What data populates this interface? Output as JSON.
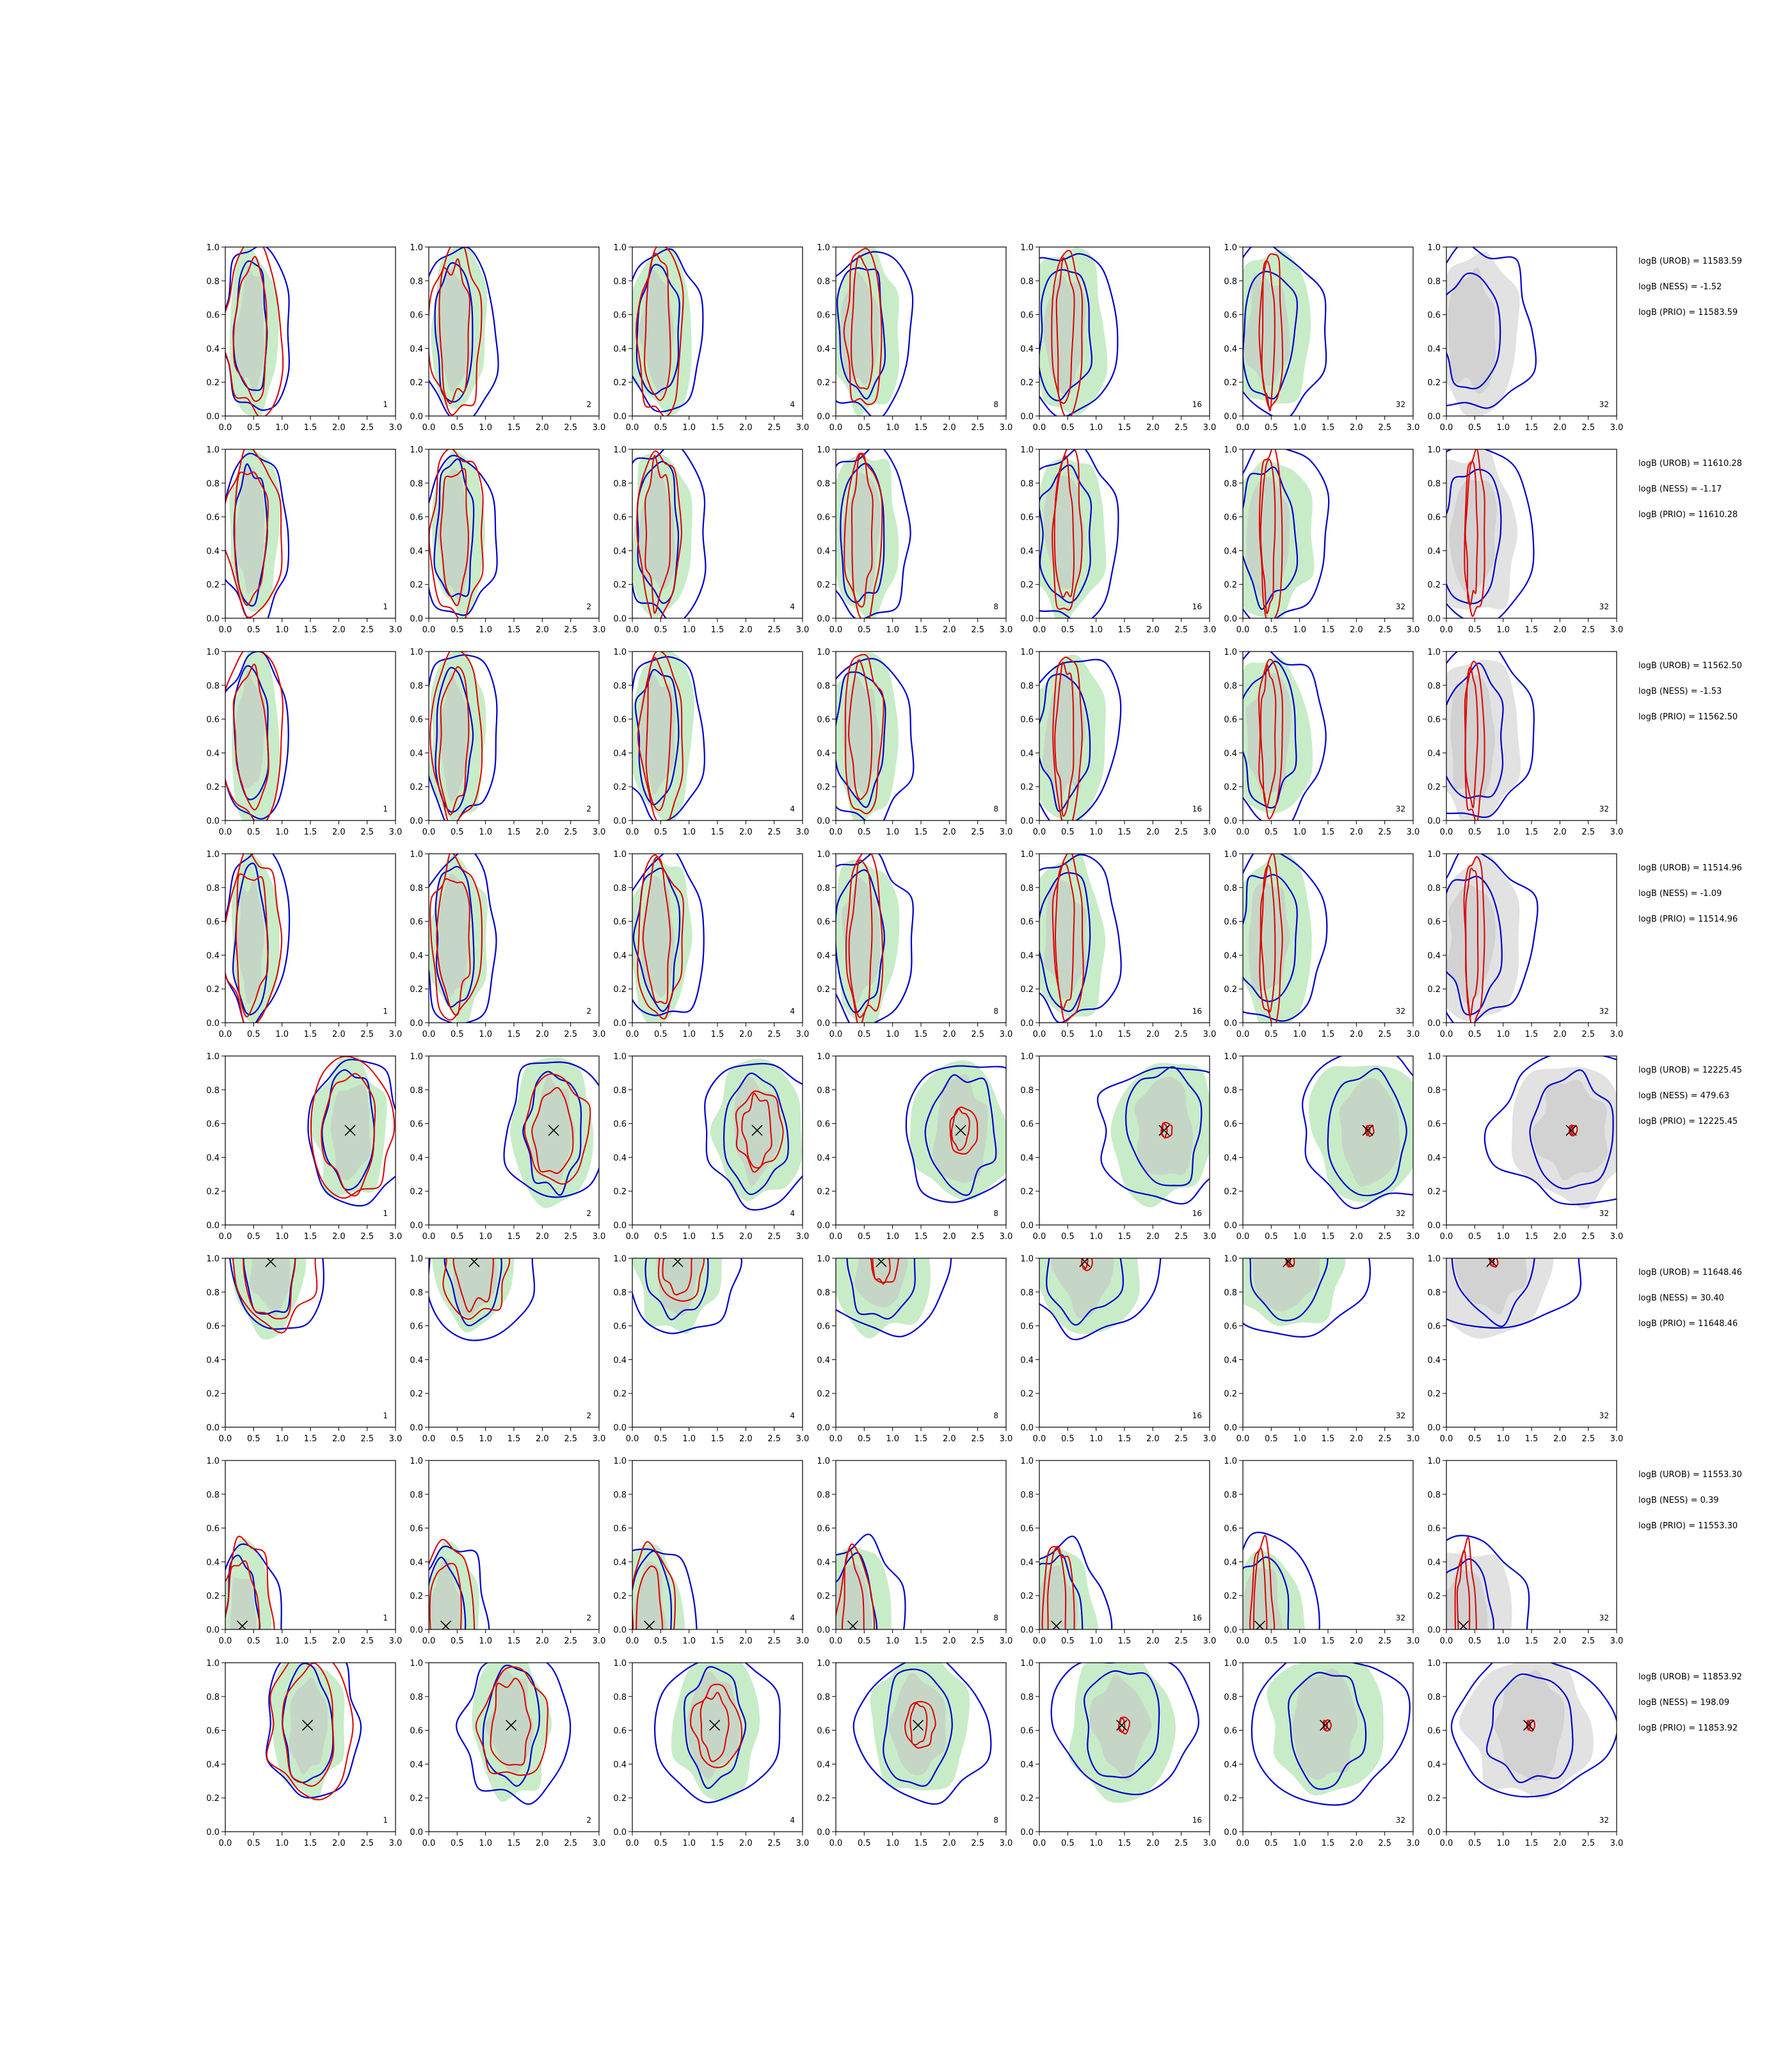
{
  "chart_data": {
    "type": "contour",
    "grid": {
      "rows": 8,
      "cols": 7
    },
    "xlim": [
      0,
      3
    ],
    "ylim": [
      0,
      1
    ],
    "x_ticks": [
      "0.0",
      "0.5",
      "1.0",
      "1.5",
      "2.0",
      "2.5",
      "3.0"
    ],
    "y_ticks": [
      "0.0",
      "0.2",
      "0.4",
      "0.6",
      "0.8",
      "1.0"
    ],
    "column_labels": [
      "1",
      "2",
      "4",
      "8",
      "16",
      "32",
      "32"
    ],
    "colors": {
      "blue_contour": "#0000cc",
      "red_contour": "#dd0000",
      "green_fill": "#c8ecc8",
      "grey_fill": "#c4c4c4",
      "last_fill": "#e2e2e2",
      "marker": "#000000"
    },
    "rows": [
      {
        "center": [
          0.45,
          0.5
        ],
        "marker": null,
        "annotations": [
          "logB (UROB) = 11583.59",
          "logB (NESS) = -1.52",
          "logB (PRIO) = 11583.59"
        ]
      },
      {
        "center": [
          0.45,
          0.5
        ],
        "marker": null,
        "annotations": [
          "logB (UROB) = 11610.28",
          "logB (NESS) = -1.17",
          "logB (PRIO) = 11610.28"
        ]
      },
      {
        "center": [
          0.45,
          0.5
        ],
        "marker": null,
        "annotations": [
          "logB (UROB) = 11562.50",
          "logB (NESS) = -1.53",
          "logB (PRIO) = 11562.50"
        ]
      },
      {
        "center": [
          0.45,
          0.5
        ],
        "marker": null,
        "annotations": [
          "logB (UROB) = 11514.96",
          "logB (NESS) = -1.09",
          "logB (PRIO) = 11514.96"
        ]
      },
      {
        "center": [
          2.2,
          0.56
        ],
        "marker": [
          2.2,
          0.56
        ],
        "annotations": [
          "logB (UROB) = 12225.45",
          "logB (NESS) = 479.63",
          "logB (PRIO) = 12225.45"
        ]
      },
      {
        "center": [
          0.8,
          0.98
        ],
        "marker": [
          0.8,
          0.98
        ],
        "annotations": [
          "logB (UROB) = 11648.46",
          "logB (NESS) = 30.40",
          "logB (PRIO) = 11648.46"
        ]
      },
      {
        "center": [
          0.3,
          0.02
        ],
        "marker": [
          0.3,
          0.02
        ],
        "annotations": [
          "logB (UROB) = 11553.30",
          "logB (NESS) = 0.39",
          "logB (PRIO) = 11553.30"
        ]
      },
      {
        "center": [
          1.45,
          0.63
        ],
        "marker": [
          1.45,
          0.63
        ],
        "annotations": [
          "logB (UROB) = 11853.92",
          "logB (NESS) = 198.09",
          "logB (PRIO) = 11853.92"
        ]
      }
    ]
  }
}
